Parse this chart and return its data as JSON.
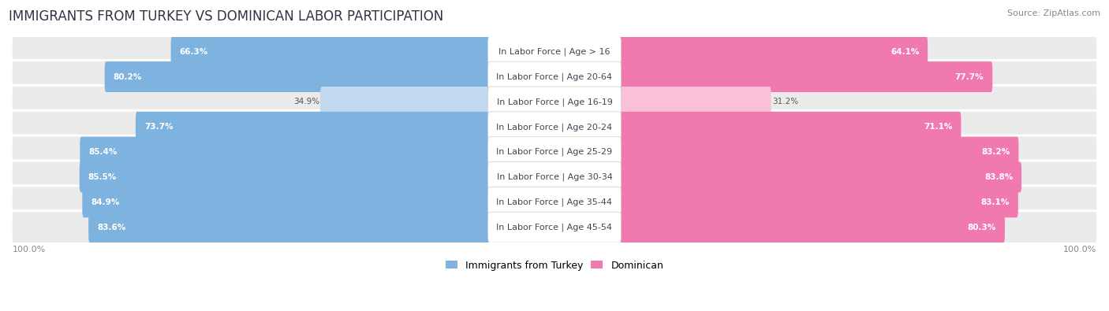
{
  "title": "IMMIGRANTS FROM TURKEY VS DOMINICAN LABOR PARTICIPATION",
  "source": "Source: ZipAtlas.com",
  "categories": [
    "In Labor Force | Age > 16",
    "In Labor Force | Age 20-64",
    "In Labor Force | Age 16-19",
    "In Labor Force | Age 20-24",
    "In Labor Force | Age 25-29",
    "In Labor Force | Age 30-34",
    "In Labor Force | Age 35-44",
    "In Labor Force | Age 45-54"
  ],
  "turkey_values": [
    66.3,
    80.2,
    34.9,
    73.7,
    85.4,
    85.5,
    84.9,
    83.6
  ],
  "dominican_values": [
    64.1,
    77.7,
    31.2,
    71.1,
    83.2,
    83.8,
    83.1,
    80.3
  ],
  "turkey_color": "#7EB3E0",
  "turkey_color_light": "#C2D9EF",
  "dominican_color": "#F07AB0",
  "dominican_color_light": "#F9C0D8",
  "row_bg_color": "#EBEBEB",
  "label_fontsize": 8.0,
  "value_fontsize": 7.5,
  "legend_fontsize": 9,
  "axis_label_fontsize": 8,
  "title_fontsize": 12,
  "source_fontsize": 8
}
